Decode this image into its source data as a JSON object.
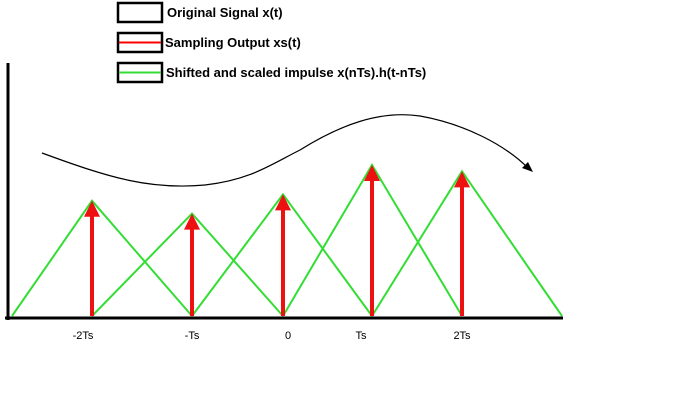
{
  "legend": {
    "items": [
      {
        "label": "Original Signal x(t)",
        "color": "#000000"
      },
      {
        "label": "Sampling Output xs(t)",
        "color": "#ff0000"
      },
      {
        "label": "Shifted and scaled impulse x(nTs).h(t-nTs)",
        "color": "#33dd33"
      }
    ]
  },
  "axis": {
    "ticks": [
      "-2Ts",
      "-Ts",
      "0",
      "Ts",
      "2Ts"
    ]
  },
  "samples": [
    {
      "n": -2,
      "amplitude": 0.9
    },
    {
      "n": -1,
      "amplitude": 0.8
    },
    {
      "n": 0,
      "amplitude": 0.95
    },
    {
      "n": 1,
      "amplitude": 1.18
    },
    {
      "n": 2,
      "amplitude": 1.13
    }
  ],
  "colors": {
    "signal": "#000000",
    "impulse": "#ee1111",
    "triangle": "#33dd33",
    "axis": "#000000"
  }
}
